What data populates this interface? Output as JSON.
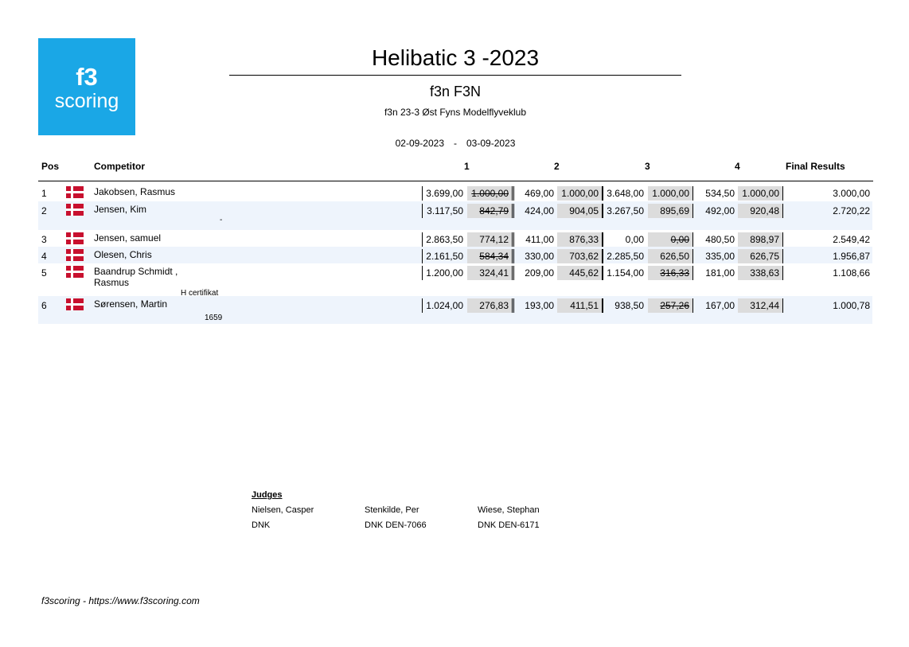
{
  "logo": {
    "line1": "f3",
    "line2": "scoring"
  },
  "title": "Helibatic 3 -2023",
  "subtitle": "f3n F3N",
  "club": "f3n 23-3 Øst Fyns Modelflyveklub",
  "dates": {
    "start": "02-09-2023",
    "separator": "-",
    "end": "03-09-2023"
  },
  "headers": {
    "pos": "Pos",
    "competitor": "Competitor",
    "r1": "1",
    "r2": "2",
    "r3": "3",
    "r4": "4",
    "final": "Final Results"
  },
  "rows": [
    {
      "pos": "1",
      "name": "Jakobsen, Rasmus",
      "name2": "",
      "extra": "",
      "r1_raw": "3.699,00",
      "r1_norm": "1.000,00",
      "r1_drop": true,
      "r2_raw": "469,00",
      "r2_norm": "1.000,00",
      "r2_drop": false,
      "r3_raw": "3.648,00",
      "r3_norm": "1.000,00",
      "r3_drop": false,
      "r4_raw": "534,50",
      "r4_norm": "1.000,00",
      "r4_drop": false,
      "final": "3.000,00"
    },
    {
      "pos": "2",
      "name": "Jensen, Kim",
      "name2": "",
      "extra": "-",
      "r1_raw": "3.117,50",
      "r1_norm": "842,79",
      "r1_drop": true,
      "r2_raw": "424,00",
      "r2_norm": "904,05",
      "r2_drop": false,
      "r3_raw": "3.267,50",
      "r3_norm": "895,69",
      "r3_drop": false,
      "r4_raw": "492,00",
      "r4_norm": "920,48",
      "r4_drop": false,
      "final": "2.720,22"
    },
    {
      "pos": "3",
      "name": "Jensen, samuel",
      "name2": "",
      "extra": "",
      "r1_raw": "2.863,50",
      "r1_norm": "774,12",
      "r1_drop": false,
      "r2_raw": "411,00",
      "r2_norm": "876,33",
      "r2_drop": false,
      "r3_raw": "0,00",
      "r3_norm": "0,00",
      "r3_drop": true,
      "r4_raw": "480,50",
      "r4_norm": "898,97",
      "r4_drop": false,
      "final": "2.549,42"
    },
    {
      "pos": "4",
      "name": "Olesen, Chris",
      "name2": "",
      "extra": "",
      "r1_raw": "2.161,50",
      "r1_norm": "584,34",
      "r1_drop": true,
      "r2_raw": "330,00",
      "r2_norm": "703,62",
      "r2_drop": false,
      "r3_raw": "2.285,50",
      "r3_norm": "626,50",
      "r3_drop": false,
      "r4_raw": "335,00",
      "r4_norm": "626,75",
      "r4_drop": false,
      "final": "1.956,87"
    },
    {
      "pos": "5",
      "name": "Baandrup Schmidt ,",
      "name2": "Rasmus",
      "extra": "H certifikat",
      "r1_raw": "1.200,00",
      "r1_norm": "324,41",
      "r1_drop": false,
      "r2_raw": "209,00",
      "r2_norm": "445,62",
      "r2_drop": false,
      "r3_raw": "1.154,00",
      "r3_norm": "316,33",
      "r3_drop": true,
      "r4_raw": "181,00",
      "r4_norm": "338,63",
      "r4_drop": false,
      "final": "1.108,66"
    },
    {
      "pos": "6",
      "name": "Sørensen, Martin",
      "name2": "",
      "extra": "1659",
      "r1_raw": "1.024,00",
      "r1_norm": "276,83",
      "r1_drop": false,
      "r2_raw": "193,00",
      "r2_norm": "411,51",
      "r2_drop": false,
      "r3_raw": "938,50",
      "r3_norm": "257,26",
      "r3_drop": true,
      "r4_raw": "167,00",
      "r4_norm": "312,44",
      "r4_drop": false,
      "final": "1.000,78"
    }
  ],
  "judges": {
    "heading": "Judges",
    "list": [
      {
        "name": "Nielsen, Casper",
        "country": "DNK"
      },
      {
        "name": "Stenkilde, Per",
        "country": "DNK DEN-7066"
      },
      {
        "name": "Wiese, Stephan",
        "country": "DNK DEN-6171"
      }
    ]
  },
  "footer": "f3scoring - https://www.f3scoring.com",
  "colors": {
    "logo_bg": "#1aa7e6",
    "row_shade": "#eef4fc",
    "score_box": "#dcdcdc",
    "flag_red": "#c8102e"
  }
}
